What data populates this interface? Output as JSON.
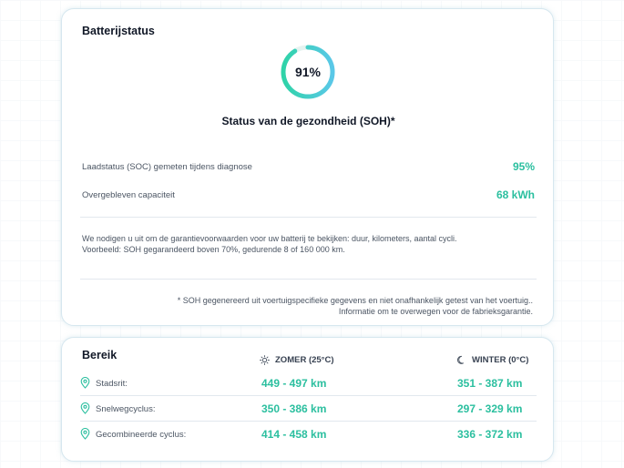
{
  "battery": {
    "title": "Batterijstatus",
    "soh_value": "91%",
    "soh_fraction": 0.91,
    "soh_label": "Status van de gezondheid (SOH)*",
    "metrics": [
      {
        "label": "Laadstatus (SOC) gemeten tijdens diagnose",
        "value": "95%"
      },
      {
        "label": "Overgebleven capaciteit",
        "value": "68 kWh"
      }
    ],
    "warranty_note_line1": "We nodigen u uit om de garantievoorwaarden voor uw batterij te bekijken: duur, kilometers, aantal cycli.",
    "warranty_note_line2": "Voorbeeld: SOH gegarandeerd boven 70%, gedurende 8 of 160 000 km.",
    "footnote_line1": "* SOH gegenereerd uit voertuigspecifieke gegevens en niet onafhankelijk getest van het voertuig..",
    "footnote_line2": "Informatie om te overwegen voor de fabrieksgarantie."
  },
  "range": {
    "title": "Bereik",
    "summer_header": "ZOMER (25°C)",
    "winter_header": "WINTER (0°C)",
    "rows": [
      {
        "label": "Stadsrit:",
        "summer": "449 - 497 km",
        "winter": "351 - 387 km"
      },
      {
        "label": "Snelwegcyclus:",
        "summer": "350 - 386 km",
        "winter": "297 - 329 km"
      },
      {
        "label": "Gecombineerde cyclus:",
        "summer": "414 - 458 km",
        "winter": "336 - 372 km"
      }
    ]
  },
  "colors": {
    "accent": "#2bbf9f",
    "ring_start": "#2fd3a8",
    "ring_end": "#5ac8e8",
    "card_border": "#d6e7ef"
  },
  "icons": {
    "summer": "sun-icon",
    "winter": "moon-icon",
    "row": "map-pin-icon"
  }
}
